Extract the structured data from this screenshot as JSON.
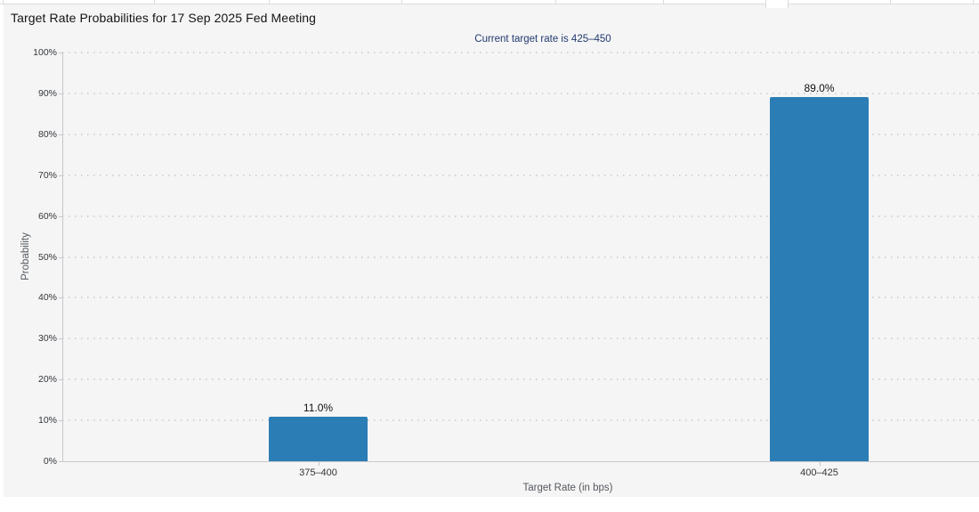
{
  "chart_data": {
    "type": "bar",
    "title": "Target Rate Probabilities for 17 Sep 2025 Fed Meeting",
    "subtitle": "Current target rate is 425–450",
    "categories": [
      "375–400",
      "400–425"
    ],
    "values": [
      11.0,
      89.0
    ],
    "value_labels": [
      "11.0%",
      "89.0%"
    ],
    "xlabel": "Target Rate (in bps)",
    "ylabel": "Probability",
    "ylim": [
      0,
      100
    ],
    "ytick_step": 10,
    "ytick_labels": [
      "0%",
      "10%",
      "20%",
      "30%",
      "40%",
      "50%",
      "60%",
      "70%",
      "80%",
      "90%",
      "100%"
    ],
    "grid": "dotted-horizontal",
    "legend_position": "none",
    "bar_color": "#2b7db5"
  },
  "colors": {
    "panel_background": "#f5f5f6",
    "axis_line": "#c7c7cc",
    "gridline": "#d3d3d8",
    "subtitle_text": "#223a6e",
    "bar": "#2b7db5"
  }
}
